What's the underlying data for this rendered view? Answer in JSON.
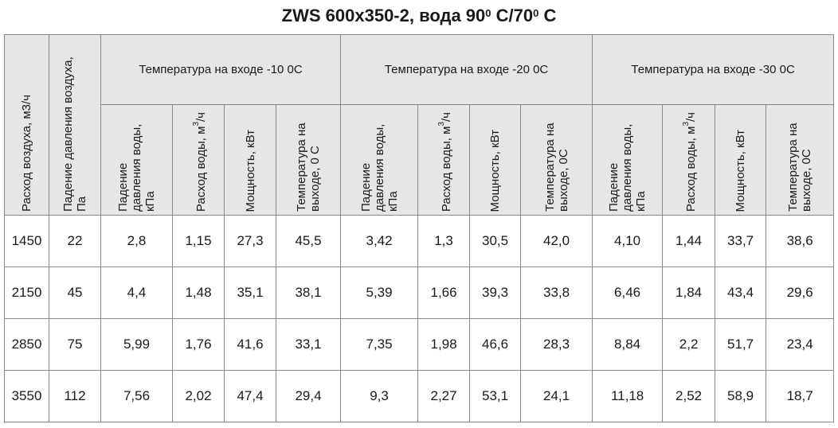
{
  "title": {
    "prefix": "ZWS 600х350-2, вода 90",
    "sup1": "0",
    "middle": " С/70",
    "sup2": "0",
    "suffix": " С"
  },
  "header": {
    "airflow": "Расход воздуха, м3/ч",
    "air_pressure": "Падение давления воздуха, Па",
    "groups": [
      "Температура на входе -10 0С",
      "Температура на входе -20 0С",
      "Температура на входе -30 0С"
    ],
    "sub": {
      "water_pressure": "Падение давления воды, кПа",
      "water_flow_prefix": "Расход воды, м",
      "water_flow_sup": "3",
      "water_flow_suffix": "/ч",
      "power": "Мощность, кВт",
      "outlet_temp_first": "Температура на выходе, 0 С",
      "outlet_temp": "Температура на выходе, 0С"
    }
  },
  "rows": [
    [
      "1450",
      "22",
      "2,8",
      "1,15",
      "27,3",
      "45,5",
      "3,42",
      "1,3",
      "30,5",
      "42,0",
      "4,10",
      "1,44",
      "33,7",
      "38,6"
    ],
    [
      "2150",
      "45",
      "4,4",
      "1,48",
      "35,1",
      "38,1",
      "5,39",
      "1,66",
      "39,3",
      "33,8",
      "6,46",
      "1,84",
      "43,4",
      "29,6"
    ],
    [
      "2850",
      "75",
      "5,99",
      "1,76",
      "41,6",
      "33,1",
      "7,35",
      "1,98",
      "46,6",
      "28,3",
      "8,84",
      "2,2",
      "51,7",
      "23,4"
    ],
    [
      "3550",
      "112",
      "7,56",
      "2,02",
      "47,4",
      "29,4",
      "9,3",
      "2,27",
      "53,1",
      "24,1",
      "11,18",
      "2,52",
      "58,9",
      "18,7"
    ]
  ]
}
